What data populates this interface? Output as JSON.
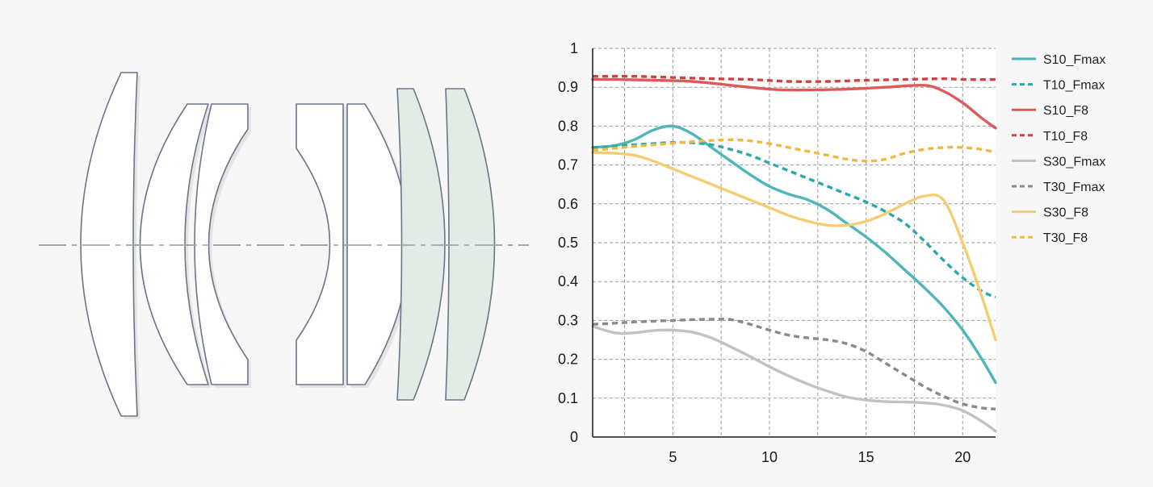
{
  "colors": {
    "background": "#f7f7f7",
    "plot_bg": "#ffffff",
    "grid": "#9a9a9a",
    "axis": "#1a1a1a",
    "lens_stroke": "#6b7787",
    "lens_fill": "#ffffff",
    "lens_fill_tinted": "#e3ebe6",
    "optical_axis": "#a8a8a8"
  },
  "diagram": {
    "name": "lens-construction",
    "elements": [
      "biconvex",
      "meniscus",
      "meniscus",
      "biconcave-front",
      "convex",
      "ed-tinted",
      "ed-tinted"
    ]
  },
  "chart_data": {
    "type": "line",
    "title": "",
    "xlabel": "",
    "ylabel": "",
    "xlim": [
      0.85,
      21.7
    ],
    "ylim": [
      0,
      1
    ],
    "xticks": [
      5,
      10,
      15,
      20
    ],
    "yticks": [
      0,
      0.1,
      0.2,
      0.3,
      0.4,
      0.5,
      0.6,
      0.7,
      0.8,
      0.9,
      1
    ],
    "ytick_labels": [
      "0",
      "0.1",
      "0.2",
      "0.3",
      "0.4",
      "0.5",
      "0.6",
      "0.7",
      "0.8",
      "0.9",
      "1"
    ],
    "grid": true,
    "legend_position": "top-right",
    "series": [
      {
        "name": "S10_Fmax",
        "color": "#4db6b8",
        "dash": false,
        "x": [
          0.85,
          2,
          3,
          4,
          5,
          6,
          7,
          8,
          9,
          10,
          11,
          12,
          13,
          14,
          15,
          16,
          17,
          18,
          19,
          20,
          21,
          21.7
        ],
        "y": [
          0.745,
          0.75,
          0.765,
          0.79,
          0.8,
          0.78,
          0.745,
          0.71,
          0.675,
          0.645,
          0.625,
          0.61,
          0.585,
          0.55,
          0.515,
          0.475,
          0.43,
          0.385,
          0.335,
          0.275,
          0.2,
          0.14
        ]
      },
      {
        "name": "T10_Fmax",
        "color": "#2ba8ae",
        "dash": true,
        "x": [
          0.85,
          2,
          3,
          4,
          5,
          6,
          7,
          8,
          9,
          10,
          11,
          12,
          13,
          14,
          15,
          16,
          17,
          18,
          19,
          20,
          21,
          21.7
        ],
        "y": [
          0.745,
          0.748,
          0.752,
          0.755,
          0.758,
          0.757,
          0.752,
          0.74,
          0.725,
          0.705,
          0.685,
          0.665,
          0.645,
          0.625,
          0.605,
          0.58,
          0.55,
          0.505,
          0.455,
          0.41,
          0.375,
          0.36
        ]
      },
      {
        "name": "S10_F8",
        "color": "#de5a5a",
        "dash": false,
        "x": [
          0.85,
          2,
          4,
          6,
          8,
          10,
          11,
          12,
          14,
          16,
          18,
          19,
          20,
          21,
          21.7
        ],
        "y": [
          0.92,
          0.92,
          0.918,
          0.915,
          0.905,
          0.895,
          0.893,
          0.893,
          0.895,
          0.9,
          0.905,
          0.89,
          0.86,
          0.82,
          0.795
        ]
      },
      {
        "name": "T10_F8",
        "color": "#c94444",
        "dash": true,
        "x": [
          0.85,
          3,
          5,
          7,
          9,
          11,
          13,
          15,
          17,
          19,
          20,
          21.7
        ],
        "y": [
          0.928,
          0.928,
          0.925,
          0.922,
          0.92,
          0.915,
          0.915,
          0.918,
          0.92,
          0.922,
          0.92,
          0.92
        ]
      },
      {
        "name": "S30_Fmax",
        "color": "#c2c2c2",
        "dash": false,
        "x": [
          0.85,
          2,
          3,
          4,
          5,
          6,
          7,
          8,
          9,
          10,
          11,
          12,
          13,
          14,
          15,
          16,
          17,
          18,
          19,
          20,
          21,
          21.7
        ],
        "y": [
          0.285,
          0.268,
          0.268,
          0.274,
          0.275,
          0.27,
          0.255,
          0.232,
          0.207,
          0.181,
          0.157,
          0.136,
          0.118,
          0.103,
          0.095,
          0.091,
          0.09,
          0.088,
          0.082,
          0.068,
          0.04,
          0.015
        ]
      },
      {
        "name": "T30_Fmax",
        "color": "#8a8a8a",
        "dash": true,
        "x": [
          0.85,
          2,
          3,
          4,
          5,
          6,
          7,
          8,
          9,
          10,
          11,
          12,
          13,
          14,
          15,
          16,
          17,
          18,
          19,
          20,
          21,
          21.7
        ],
        "y": [
          0.29,
          0.293,
          0.296,
          0.298,
          0.3,
          0.302,
          0.303,
          0.302,
          0.29,
          0.275,
          0.262,
          0.255,
          0.25,
          0.24,
          0.22,
          0.19,
          0.16,
          0.13,
          0.105,
          0.085,
          0.075,
          0.072
        ]
      },
      {
        "name": "S30_F8",
        "color": "#f4cd72",
        "dash": false,
        "x": [
          0.85,
          2,
          3,
          4,
          5,
          6,
          7,
          8,
          9,
          10,
          11,
          12,
          13,
          14,
          15,
          16,
          17,
          18,
          19,
          20,
          21,
          21.7
        ],
        "y": [
          0.732,
          0.73,
          0.725,
          0.71,
          0.69,
          0.67,
          0.65,
          0.63,
          0.61,
          0.59,
          0.57,
          0.555,
          0.545,
          0.545,
          0.555,
          0.575,
          0.6,
          0.62,
          0.61,
          0.5,
          0.36,
          0.25
        ]
      },
      {
        "name": "T30_F8",
        "color": "#f2b93e",
        "dash": true,
        "x": [
          0.85,
          2,
          3,
          4,
          5,
          6,
          7,
          8,
          9,
          10,
          11,
          12,
          13,
          14,
          15,
          16,
          17,
          18,
          19,
          20,
          21,
          21.7
        ],
        "y": [
          0.738,
          0.743,
          0.748,
          0.752,
          0.756,
          0.76,
          0.763,
          0.765,
          0.762,
          0.755,
          0.745,
          0.735,
          0.725,
          0.715,
          0.71,
          0.715,
          0.73,
          0.74,
          0.745,
          0.745,
          0.74,
          0.732
        ]
      }
    ]
  }
}
